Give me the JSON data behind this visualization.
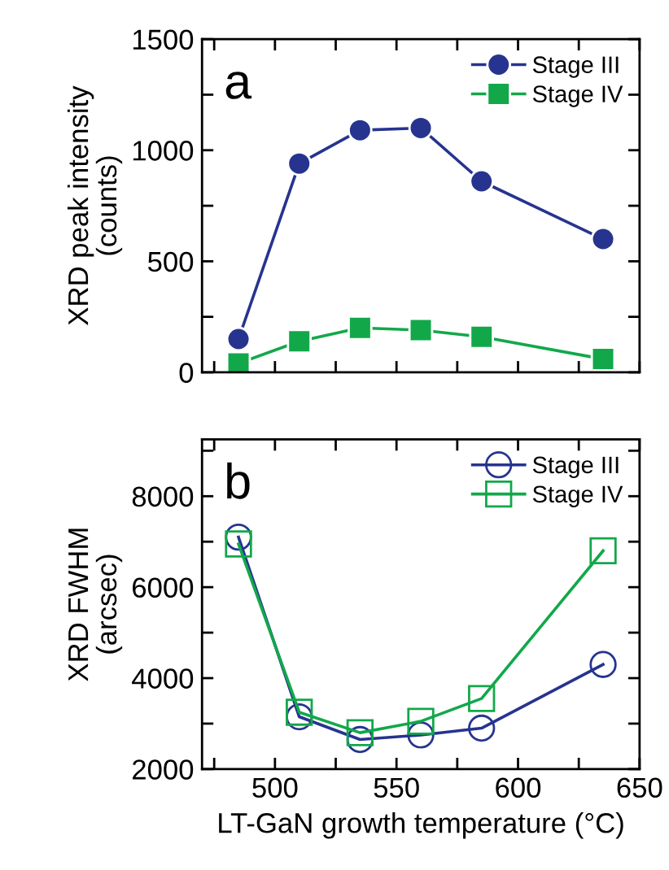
{
  "chart_data": [
    {
      "type": "line",
      "ylabel": "XRD peak intensity\n(counts)",
      "annotations": [
        "a"
      ],
      "x": [
        485,
        510,
        535,
        560,
        585,
        635
      ],
      "series": [
        {
          "name": "Stage III",
          "color": "#26348f",
          "marker": "circle",
          "values": [
            150,
            940,
            1090,
            1100,
            860,
            600
          ]
        },
        {
          "name": "Stage IV",
          "color": "#12a84a",
          "marker": "square",
          "values": [
            40,
            140,
            200,
            190,
            160,
            60
          ]
        }
      ],
      "xlim": [
        470,
        650
      ],
      "xticks": [
        {
          "value": 475,
          "label": null
        },
        {
          "value": 500,
          "label": null
        },
        {
          "value": 525,
          "label": null
        },
        {
          "value": 550,
          "label": null
        },
        {
          "value": 575,
          "label": null
        },
        {
          "value": 600,
          "label": null
        },
        {
          "value": 625,
          "label": null
        },
        {
          "value": 650,
          "label": null
        }
      ],
      "ylim": [
        0,
        1500
      ],
      "yticks": [
        0,
        {
          "value": 250,
          "label": null
        },
        500,
        {
          "value": 750,
          "label": null
        },
        1000,
        {
          "value": 1250,
          "label": null
        },
        1500
      ],
      "tick_labels": "y",
      "grid": false,
      "legend": "top right",
      "line_style": "solid"
    },
    {
      "type": "line",
      "xlabel": "LT-GaN growth temperature (°C)",
      "ylabel": "XRD FWHM\n(arcsec)",
      "annotations": [
        "b"
      ],
      "x": [
        485,
        510,
        535,
        560,
        585,
        635
      ],
      "series": [
        {
          "name": "Stage III",
          "color": "#26348f",
          "marker": "circle",
          "values": [
            7100,
            3150,
            2650,
            2750,
            2900,
            4300
          ]
        },
        {
          "name": "Stage IV",
          "color": "#12a84a",
          "marker": "square",
          "values": [
            6950,
            3250,
            2800,
            3050,
            3550,
            6800
          ]
        }
      ],
      "xlim": [
        470,
        650
      ],
      "xticks": [
        {
          "value": 475,
          "label": null
        },
        500,
        {
          "value": 525,
          "label": null
        },
        550,
        {
          "value": 575,
          "label": null
        },
        600,
        {
          "value": 625,
          "label": null
        },
        650
      ],
      "ylim": [
        2000,
        9250
      ],
      "yticks": [
        2000,
        {
          "value": 3000,
          "label": null
        },
        4000,
        {
          "value": 5000,
          "label": null
        },
        6000,
        {
          "value": 7000,
          "label": null
        },
        8000,
        {
          "value": 9000,
          "label": null
        }
      ],
      "grid": false,
      "legend": "top right",
      "line_style": "solid"
    }
  ]
}
